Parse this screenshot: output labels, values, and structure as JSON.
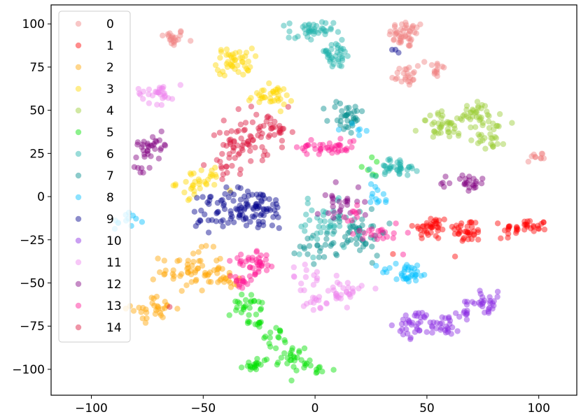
{
  "chart_data": {
    "type": "scatter",
    "title": "",
    "xlabel": "",
    "ylabel": "",
    "xlim": [
      -118,
      117
    ],
    "ylim": [
      -115,
      111
    ],
    "xticks": [
      -100,
      -50,
      0,
      50,
      100
    ],
    "yticks": [
      -100,
      -75,
      -50,
      -25,
      0,
      25,
      50,
      75,
      100
    ],
    "xtick_labels": [
      "−100",
      "−50",
      "0",
      "50",
      "100"
    ],
    "ytick_labels": [
      "−100",
      "−75",
      "−50",
      "−25",
      "0",
      "25",
      "50",
      "75",
      "100"
    ],
    "grid": false,
    "legend_position": "upper-left",
    "marker_opacity": 0.45,
    "series": [
      {
        "name": "0",
        "color": "#f08080",
        "clusters": [
          {
            "cx": -64,
            "cy": 92,
            "sx": 3,
            "sy": 2.5,
            "n": 20
          },
          {
            "cx": 41,
            "cy": 94,
            "sx": 4,
            "sy": 4,
            "n": 45
          },
          {
            "cx": 40,
            "cy": 70,
            "sx": 3,
            "sy": 3,
            "n": 22
          },
          {
            "cx": 54,
            "cy": 74,
            "sx": 2,
            "sy": 3.5,
            "n": 14
          },
          {
            "cx": 99,
            "cy": 23,
            "sx": 3,
            "sy": 2,
            "n": 10
          }
        ]
      },
      {
        "name": "1",
        "color": "#ff0000",
        "clusters": [
          {
            "cx": 52,
            "cy": -18,
            "sx": 4,
            "sy": 3.5,
            "n": 38
          },
          {
            "cx": 68,
            "cy": -20,
            "sx": 3.5,
            "sy": 3.5,
            "n": 35
          },
          {
            "cx": 94,
            "cy": -18,
            "sx": 5,
            "sy": 2.5,
            "n": 35
          },
          {
            "cx": 35,
            "cy": -33,
            "sx": 0.5,
            "sy": 0.5,
            "n": 1
          },
          {
            "cx": 83,
            "cy": -24,
            "sx": 0.5,
            "sy": 0.5,
            "n": 1
          }
        ]
      },
      {
        "name": "2",
        "color": "#ffa500",
        "clusters": [
          {
            "cx": -55,
            "cy": -43,
            "sx": 7,
            "sy": 6,
            "n": 60
          },
          {
            "cx": -72,
            "cy": -65,
            "sx": 5,
            "sy": 3.5,
            "n": 30
          },
          {
            "cx": -38,
            "cy": -47,
            "sx": 4,
            "sy": 3.5,
            "n": 15
          }
        ]
      },
      {
        "name": "3",
        "color": "#ffd700",
        "clusters": [
          {
            "cx": -36,
            "cy": 78,
            "sx": 4,
            "sy": 4,
            "n": 45
          },
          {
            "cx": -20,
            "cy": 58,
            "sx": 5,
            "sy": 3,
            "n": 35
          },
          {
            "cx": -52,
            "cy": 8,
            "sx": 5,
            "sy": 4,
            "n": 35
          }
        ]
      },
      {
        "name": "4",
        "color": "#9acd32",
        "clusters": [
          {
            "cx": 59,
            "cy": 41,
            "sx": 6,
            "sy": 4,
            "n": 45
          },
          {
            "cx": 73,
            "cy": 47,
            "sx": 5,
            "sy": 4,
            "n": 30
          },
          {
            "cx": 79,
            "cy": 36,
            "sx": 3,
            "sy": 5,
            "n": 28
          }
        ]
      },
      {
        "name": "5",
        "color": "#00e000",
        "clusters": [
          {
            "cx": -31,
            "cy": -63,
            "sx": 3.5,
            "sy": 3,
            "n": 25
          },
          {
            "cx": -27,
            "cy": -73,
            "sx": 2,
            "sy": 2,
            "n": 10
          },
          {
            "cx": -18,
            "cy": -82,
            "sx": 3,
            "sy": 3,
            "n": 15
          },
          {
            "cx": -26,
            "cy": -97,
            "sx": 3,
            "sy": 2,
            "n": 20
          },
          {
            "cx": -9,
            "cy": -93,
            "sx": 3,
            "sy": 3.5,
            "n": 25
          },
          {
            "cx": 1,
            "cy": -100,
            "sx": 2.5,
            "sy": 1.5,
            "n": 10
          },
          {
            "cx": 25,
            "cy": 18,
            "sx": 2,
            "sy": 3,
            "n": 6
          }
        ]
      },
      {
        "name": "6",
        "color": "#20b2aa",
        "clusters": [
          {
            "cx": -2,
            "cy": 95,
            "sx": 5,
            "sy": 3.5,
            "n": 40
          },
          {
            "cx": 9,
            "cy": 82,
            "sx": 4,
            "sy": 4,
            "n": 35
          },
          {
            "cx": 36,
            "cy": 17,
            "sx": 5,
            "sy": 2.5,
            "n": 40
          },
          {
            "cx": 4,
            "cy": -18,
            "sx": 7,
            "sy": 7,
            "n": 40
          }
        ]
      },
      {
        "name": "7",
        "color": "#008b8b",
        "clusters": [
          {
            "cx": 14,
            "cy": 46,
            "sx": 4,
            "sy": 5,
            "n": 35
          },
          {
            "cx": 20,
            "cy": -20,
            "sx": 6,
            "sy": 7,
            "n": 45
          },
          {
            "cx": 3,
            "cy": -28,
            "sx": 5,
            "sy": 5,
            "n": 25
          }
        ]
      },
      {
        "name": "8",
        "color": "#00bfff",
        "clusters": [
          {
            "cx": 41,
            "cy": -44,
            "sx": 6,
            "sy": 3,
            "n": 35
          },
          {
            "cx": -84,
            "cy": -14,
            "sx": 3,
            "sy": 3,
            "n": 12
          },
          {
            "cx": 26,
            "cy": 2,
            "sx": 2,
            "sy": 3,
            "n": 8
          },
          {
            "cx": 30,
            "cy": -3,
            "sx": 2,
            "sy": 1,
            "n": 4
          },
          {
            "cx": 20,
            "cy": 38,
            "sx": 3,
            "sy": 3,
            "n": 6
          }
        ]
      },
      {
        "name": "9",
        "color": "#00008b",
        "clusters": [
          {
            "cx": -29,
            "cy": -7,
            "sx": 9,
            "sy": 6,
            "n": 95
          },
          {
            "cx": -47,
            "cy": -10,
            "sx": 5,
            "sy": 6,
            "n": 20
          },
          {
            "cx": 36,
            "cy": 84,
            "sx": 1,
            "sy": 1.5,
            "n": 3
          }
        ]
      },
      {
        "name": "10",
        "color": "#8a2be2",
        "clusters": [
          {
            "cx": 45,
            "cy": -74,
            "sx": 4,
            "sy": 4,
            "n": 35
          },
          {
            "cx": 58,
            "cy": -74,
            "sx": 3.5,
            "sy": 3.5,
            "n": 25
          },
          {
            "cx": 76,
            "cy": -61,
            "sx": 4,
            "sy": 3,
            "n": 30
          },
          {
            "cx": 65,
            "cy": -68,
            "sx": 3,
            "sy": 2,
            "n": 8
          }
        ]
      },
      {
        "name": "11",
        "color": "#ee82ee",
        "clusters": [
          {
            "cx": -70,
            "cy": 60,
            "sx": 5,
            "sy": 3,
            "n": 30
          },
          {
            "cx": -4,
            "cy": -46,
            "sx": 3,
            "sy": 4,
            "n": 12
          },
          {
            "cx": 11,
            "cy": -55,
            "sx": 5,
            "sy": 4,
            "n": 35
          },
          {
            "cx": 2,
            "cy": -62,
            "sx": 3,
            "sy": 3,
            "n": 10
          }
        ]
      },
      {
        "name": "12",
        "color": "#800080",
        "clusters": [
          {
            "cx": -73,
            "cy": 30,
            "sx": 4,
            "sy": 3,
            "n": 30
          },
          {
            "cx": 69,
            "cy": 7,
            "sx": 3,
            "sy": 2.5,
            "n": 20
          },
          {
            "cx": 58,
            "cy": 8,
            "sx": 1.5,
            "sy": 1.5,
            "n": 5
          },
          {
            "cx": 11,
            "cy": -3,
            "sx": 5,
            "sy": 6,
            "n": 25
          },
          {
            "cx": -78,
            "cy": 17,
            "sx": 2,
            "sy": 2,
            "n": 6
          }
        ]
      },
      {
        "name": "13",
        "color": "#ff1493",
        "clusters": [
          {
            "cx": -27,
            "cy": -39,
            "sx": 5,
            "sy": 3,
            "n": 40
          },
          {
            "cx": -34,
            "cy": -50,
            "sx": 3,
            "sy": 2.5,
            "n": 15
          },
          {
            "cx": 6,
            "cy": 29,
            "sx": 7,
            "sy": 2.5,
            "n": 40
          },
          {
            "cx": 29,
            "cy": -22,
            "sx": 5,
            "sy": 4,
            "n": 20
          },
          {
            "cx": 17,
            "cy": -13,
            "sx": 3,
            "sy": 3,
            "n": 10
          }
        ]
      },
      {
        "name": "14",
        "color": "#dc143c",
        "clusters": [
          {
            "cx": -32,
            "cy": 33,
            "sx": 6,
            "sy": 8,
            "n": 65
          },
          {
            "cx": -18,
            "cy": 37,
            "sx": 4,
            "sy": 6,
            "n": 25
          },
          {
            "cx": -38,
            "cy": 18,
            "sx": 3,
            "sy": 3,
            "n": 10
          },
          {
            "cx": -65,
            "cy": -64,
            "sx": 0.5,
            "sy": 0.5,
            "n": 1
          }
        ]
      }
    ]
  }
}
